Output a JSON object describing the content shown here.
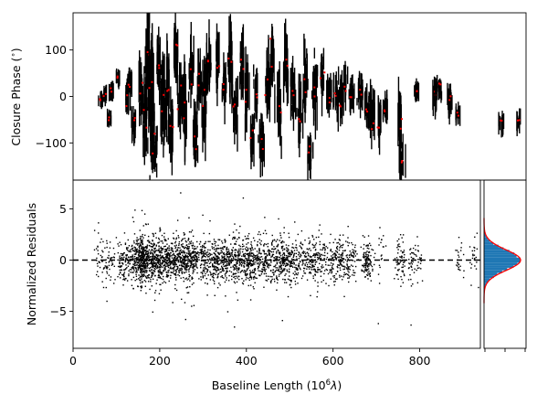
{
  "chart_data": [
    {
      "panel": "closure-phase",
      "type": "scatter",
      "xlim": [
        0,
        940
      ],
      "ylim": [
        -180,
        180
      ],
      "ylabel": "Closure Phase (°)",
      "ylabel_prefix": "Closure Phase (",
      "ylabel_suffix": ")",
      "ylabel_degree": "∘",
      "yticks": [
        100,
        0,
        -100
      ],
      "yticklabels": [
        "100",
        "0",
        "−100"
      ],
      "mark_color": "#000000",
      "model_color": "#ff0000",
      "clusters": [
        {
          "x": 58,
          "y": -8,
          "spread": 6
        },
        {
          "x": 66,
          "y": 4,
          "spread": 8
        },
        {
          "x": 75,
          "y": -48,
          "spread": 6
        },
        {
          "x": 80,
          "y": 12,
          "spread": 10
        },
        {
          "x": 92,
          "y": 40,
          "spread": 8
        },
        {
          "x": 112,
          "y": -6,
          "spread": 40
        },
        {
          "x": 118,
          "y": 30,
          "spread": 20
        },
        {
          "x": 126,
          "y": -58,
          "spread": 30
        },
        {
          "x": 140,
          "y": 20,
          "spread": 60
        },
        {
          "x": 150,
          "y": -40,
          "spread": 70
        },
        {
          "x": 156,
          "y": 100,
          "spread": 80
        },
        {
          "x": 162,
          "y": 0,
          "spread": 120
        },
        {
          "x": 168,
          "y": -90,
          "spread": 60
        },
        {
          "x": 178,
          "y": 60,
          "spread": 60
        },
        {
          "x": 186,
          "y": -20,
          "spread": 90
        },
        {
          "x": 196,
          "y": 20,
          "spread": 70
        },
        {
          "x": 204,
          "y": -70,
          "spread": 60
        },
        {
          "x": 214,
          "y": 90,
          "spread": 50
        },
        {
          "x": 222,
          "y": 0,
          "spread": 70
        },
        {
          "x": 232,
          "y": -30,
          "spread": 80
        },
        {
          "x": 244,
          "y": 60,
          "spread": 60
        },
        {
          "x": 254,
          "y": -90,
          "spread": 70
        },
        {
          "x": 262,
          "y": 40,
          "spread": 60
        },
        {
          "x": 272,
          "y": -20,
          "spread": 90
        },
        {
          "x": 284,
          "y": 70,
          "spread": 50
        },
        {
          "x": 300,
          "y": 80,
          "spread": 60
        },
        {
          "x": 312,
          "y": 20,
          "spread": 50
        },
        {
          "x": 326,
          "y": 70,
          "spread": 70
        },
        {
          "x": 336,
          "y": -30,
          "spread": 50
        },
        {
          "x": 350,
          "y": 60,
          "spread": 60
        },
        {
          "x": 360,
          "y": 10,
          "spread": 70
        },
        {
          "x": 372,
          "y": -90,
          "spread": 40
        },
        {
          "x": 380,
          "y": 0,
          "spread": 60
        },
        {
          "x": 392,
          "y": -100,
          "spread": 50
        },
        {
          "x": 404,
          "y": 20,
          "spread": 70
        },
        {
          "x": 414,
          "y": 80,
          "spread": 60
        },
        {
          "x": 428,
          "y": -20,
          "spread": 60
        },
        {
          "x": 442,
          "y": 70,
          "spread": 60
        },
        {
          "x": 456,
          "y": 10,
          "spread": 60
        },
        {
          "x": 470,
          "y": -40,
          "spread": 60
        },
        {
          "x": 482,
          "y": 30,
          "spread": 70
        },
        {
          "x": 492,
          "y": -110,
          "spread": 40
        },
        {
          "x": 502,
          "y": 20,
          "spread": 60
        },
        {
          "x": 516,
          "y": 40,
          "spread": 40
        },
        {
          "x": 532,
          "y": 0,
          "spread": 30
        },
        {
          "x": 546,
          "y": 10,
          "spread": 40
        },
        {
          "x": 556,
          "y": -10,
          "spread": 40
        },
        {
          "x": 566,
          "y": 20,
          "spread": 30
        },
        {
          "x": 578,
          "y": 0,
          "spread": 30
        },
        {
          "x": 596,
          "y": 10,
          "spread": 40
        },
        {
          "x": 610,
          "y": -20,
          "spread": 30
        },
        {
          "x": 620,
          "y": -40,
          "spread": 50
        },
        {
          "x": 634,
          "y": -50,
          "spread": 40
        },
        {
          "x": 648,
          "y": -30,
          "spread": 30
        },
        {
          "x": 678,
          "y": -70,
          "spread": 60
        },
        {
          "x": 682,
          "y": -140,
          "spread": 40
        },
        {
          "x": 712,
          "y": 10,
          "spread": 10
        },
        {
          "x": 752,
          "y": 0,
          "spread": 30
        },
        {
          "x": 760,
          "y": 20,
          "spread": 20
        },
        {
          "x": 782,
          "y": -10,
          "spread": 30
        },
        {
          "x": 798,
          "y": -40,
          "spread": 10
        },
        {
          "x": 890,
          "y": -55,
          "spread": 15
        },
        {
          "x": 925,
          "y": -50,
          "spread": 15
        }
      ]
    },
    {
      "panel": "normalized-residuals",
      "type": "scatter",
      "xlim": [
        0,
        940
      ],
      "ylim": [
        -8.6,
        7.8
      ],
      "xlabel": "Baseline Length (10⁶λ)",
      "xlabel_prefix": "Baseline Length (10",
      "xlabel_sup": "6",
      "xlabel_lambda": "λ",
      "xlabel_suffix": ")",
      "ylabel": "Normalized Residuals",
      "xticks": [
        0,
        200,
        400,
        600,
        800
      ],
      "xticklabels": [
        "0",
        "200",
        "400",
        "600",
        "800"
      ],
      "yticks": [
        5,
        0,
        -5
      ],
      "yticklabels": [
        "5",
        "0",
        "−5"
      ],
      "reference_line_y": 0,
      "reference_line_style": "dashed",
      "point_color": "#000000"
    },
    {
      "panel": "residual-histogram",
      "type": "histogram",
      "orientation": "horizontal",
      "ylim": [
        -8.6,
        7.8
      ],
      "bar_color": "#1f77b4",
      "fit_color": "#ff0000",
      "fit": "gaussian",
      "mean": 0,
      "std": 1
    }
  ]
}
